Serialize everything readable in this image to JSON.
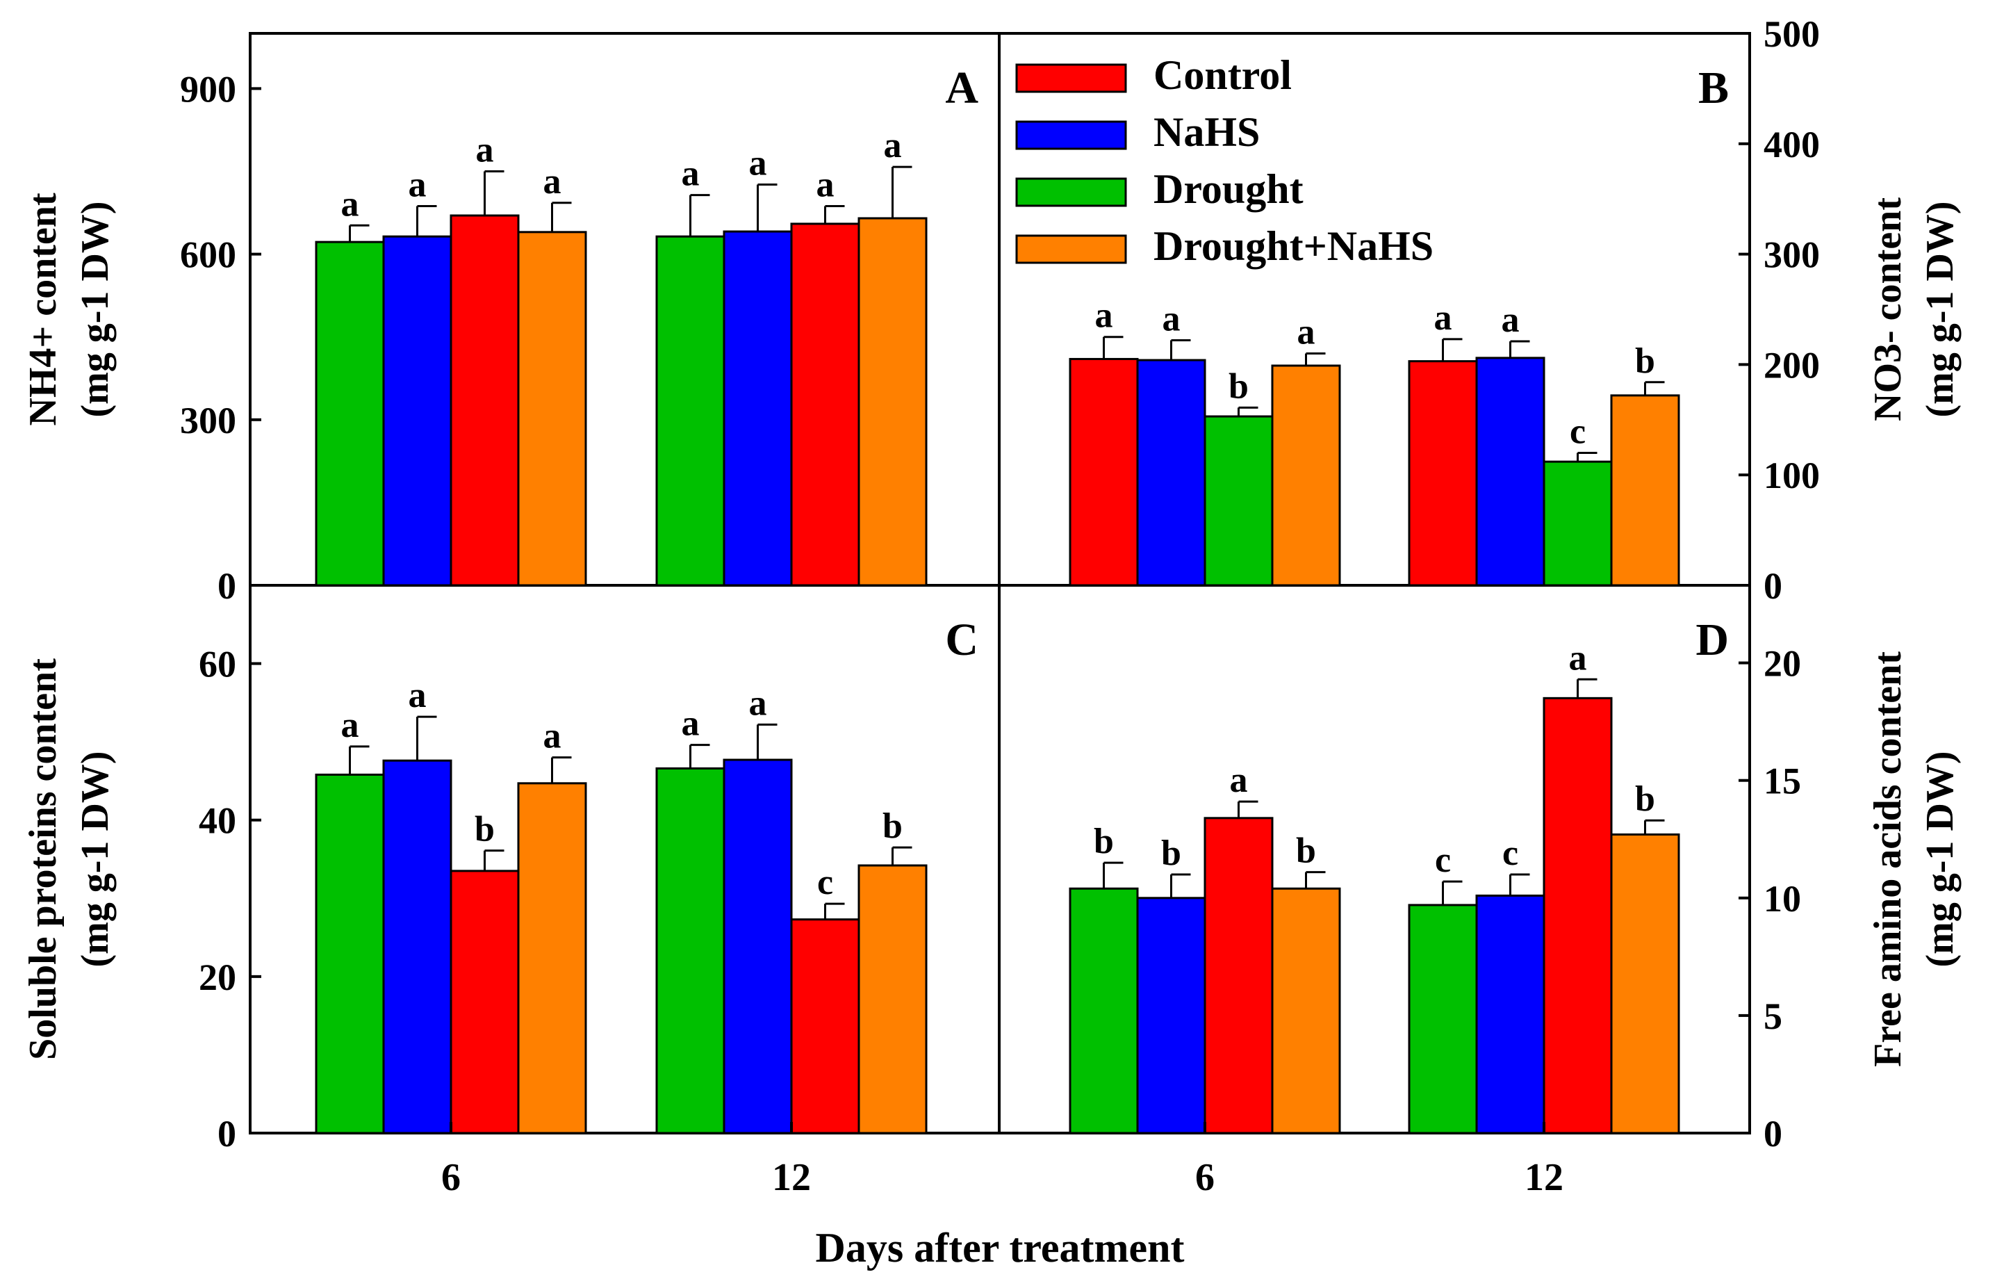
{
  "colors": {
    "Control": "#ff0000",
    "NaHS": "#0000ff",
    "Drought": "#00c000",
    "Drought+NaHS": "#ff8000"
  },
  "legend": [
    "Control",
    "NaHS",
    "Drought",
    "Drought+NaHS"
  ],
  "xlabel": "Days after treatment",
  "categories": [
    "6",
    "12"
  ],
  "chart_data": [
    {
      "panel": "A",
      "type": "bar",
      "ylabel_line1": "NH4+ content",
      "ylabel_line2": "(mg g-1 DW)",
      "yaxis_side": "left",
      "ylim": [
        0,
        1000
      ],
      "yticks": [
        0,
        300,
        600,
        900
      ],
      "categories": [
        "6",
        "12"
      ],
      "series": [
        {
          "name": "Drought",
          "values": [
            622,
            632
          ],
          "errors": [
            30,
            75
          ],
          "letters": [
            "a",
            "a"
          ]
        },
        {
          "name": "NaHS",
          "values": [
            632,
            641
          ],
          "errors": [
            55,
            85
          ],
          "letters": [
            "a",
            "a"
          ]
        },
        {
          "name": "Control",
          "values": [
            670,
            655
          ],
          "errors": [
            80,
            32
          ],
          "letters": [
            "a",
            "a"
          ]
        },
        {
          "name": "Drought+NaHS",
          "values": [
            640,
            665
          ],
          "errors": [
            53,
            93
          ],
          "letters": [
            "a",
            "a"
          ]
        }
      ]
    },
    {
      "panel": "B",
      "type": "bar",
      "ylabel_line1": "NO3- content",
      "ylabel_line2": "(mg g-1 DW)",
      "yaxis_side": "right",
      "ylim": [
        0,
        500
      ],
      "yticks": [
        0,
        100,
        200,
        300,
        400,
        500
      ],
      "categories": [
        "6",
        "12"
      ],
      "series": [
        {
          "name": "Control",
          "values": [
            205,
            203
          ],
          "errors": [
            20,
            20
          ],
          "letters": [
            "a",
            "a"
          ]
        },
        {
          "name": "NaHS",
          "values": [
            204,
            206
          ],
          "errors": [
            18,
            15
          ],
          "letters": [
            "a",
            "a"
          ]
        },
        {
          "name": "Drought",
          "values": [
            153,
            112
          ],
          "errors": [
            8,
            8
          ],
          "letters": [
            "b",
            "c"
          ]
        },
        {
          "name": "Drought+NaHS",
          "values": [
            199,
            172
          ],
          "errors": [
            11,
            12
          ],
          "letters": [
            "a",
            "b"
          ]
        }
      ]
    },
    {
      "panel": "C",
      "type": "bar",
      "ylabel_line1": "Soluble proteins content",
      "ylabel_line2": "(mg g-1 DW)",
      "yaxis_side": "left",
      "ylim": [
        0,
        70
      ],
      "yticks": [
        0,
        20,
        40,
        60
      ],
      "categories": [
        "6",
        "12"
      ],
      "series": [
        {
          "name": "Drought",
          "values": [
            45.8,
            46.6
          ],
          "errors": [
            3.6,
            3.0
          ],
          "letters": [
            "a",
            "a"
          ]
        },
        {
          "name": "NaHS",
          "values": [
            47.6,
            47.7
          ],
          "errors": [
            5.6,
            4.5
          ],
          "letters": [
            "a",
            "a"
          ]
        },
        {
          "name": "Control",
          "values": [
            33.5,
            27.3
          ],
          "errors": [
            2.6,
            2.0
          ],
          "letters": [
            "b",
            "c"
          ]
        },
        {
          "name": "Drought+NaHS",
          "values": [
            44.7,
            34.2
          ],
          "errors": [
            3.3,
            2.3
          ],
          "letters": [
            "a",
            "b"
          ]
        }
      ]
    },
    {
      "panel": "D",
      "type": "bar",
      "ylabel_line1": "Free amino acids content",
      "ylabel_line2": "(mg g-1 DW)",
      "yaxis_side": "right",
      "ylim": [
        0,
        23.3
      ],
      "yticks": [
        0,
        5,
        10,
        15,
        20
      ],
      "categories": [
        "6",
        "12"
      ],
      "series": [
        {
          "name": "Drought",
          "values": [
            10.4,
            9.7
          ],
          "errors": [
            1.1,
            1.0
          ],
          "letters": [
            "b",
            "c"
          ]
        },
        {
          "name": "NaHS",
          "values": [
            10.0,
            10.1
          ],
          "errors": [
            1.0,
            0.9
          ],
          "letters": [
            "b",
            "c"
          ]
        },
        {
          "name": "Control",
          "values": [
            13.4,
            18.5
          ],
          "errors": [
            0.7,
            0.8
          ],
          "letters": [
            "a",
            "a"
          ]
        },
        {
          "name": "Drought+NaHS",
          "values": [
            10.4,
            12.7
          ],
          "errors": [
            0.7,
            0.6
          ],
          "letters": [
            "b",
            "b"
          ]
        }
      ]
    }
  ]
}
